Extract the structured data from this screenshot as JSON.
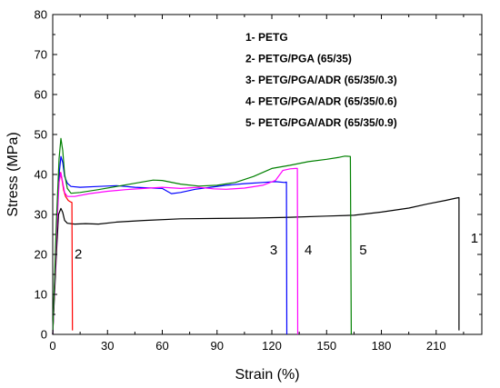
{
  "chart_data": {
    "type": "line",
    "xlabel": "Strain (%)",
    "ylabel": "Stress (MPa)",
    "xlim": [
      0,
      235
    ],
    "ylim": [
      0,
      80
    ],
    "xticks": [
      0,
      30,
      60,
      90,
      120,
      150,
      180,
      210
    ],
    "yticks": [
      0,
      10,
      20,
      30,
      40,
      50,
      60,
      70,
      80
    ],
    "grid": false,
    "legend_position": "top-right",
    "legend": [
      "1- PETG",
      "2- PETG/PGA (65/35)",
      "3- PETG/PGA/ADR  (65/35/0.3)",
      "4- PETG/PGA/ADR  (65/35/0.6)",
      "5- PETG/PGA/ADR  (65/35/0.9)"
    ],
    "series": [
      {
        "curve_label": "1",
        "color": "#000000",
        "points": [
          [
            0,
            0
          ],
          [
            2,
            20
          ],
          [
            3.2,
            30
          ],
          [
            4.5,
            31.5
          ],
          [
            5.5,
            30.5
          ],
          [
            6.5,
            28.5
          ],
          [
            8,
            27.8
          ],
          [
            12,
            27.6
          ],
          [
            18,
            27.7
          ],
          [
            25,
            27.6
          ],
          [
            35,
            28.1
          ],
          [
            50,
            28.5
          ],
          [
            70,
            28.9
          ],
          [
            90,
            29.0
          ],
          [
            110,
            29.1
          ],
          [
            130,
            29.3
          ],
          [
            150,
            29.6
          ],
          [
            165,
            29.8
          ],
          [
            180,
            30.6
          ],
          [
            195,
            31.6
          ],
          [
            205,
            32.6
          ],
          [
            215,
            33.5
          ],
          [
            221,
            34.1
          ],
          [
            222.5,
            34.2
          ],
          [
            222.5,
            1
          ]
        ]
      },
      {
        "curve_label": "2",
        "color": "#ff0000",
        "points": [
          [
            0,
            0
          ],
          [
            2,
            24
          ],
          [
            3.2,
            38
          ],
          [
            4,
            40.5
          ],
          [
            5,
            39
          ],
          [
            6,
            36
          ],
          [
            7,
            34.5
          ],
          [
            8.5,
            33.5
          ],
          [
            9.5,
            33.2
          ],
          [
            10.5,
            33
          ],
          [
            10.8,
            1
          ]
        ]
      },
      {
        "curve_label": "3",
        "color": "#0000ff",
        "points": [
          [
            0,
            0
          ],
          [
            2,
            25
          ],
          [
            3.5,
            40
          ],
          [
            4.5,
            44.5
          ],
          [
            5.5,
            43
          ],
          [
            6.5,
            39.5
          ],
          [
            8,
            37.8
          ],
          [
            10,
            37
          ],
          [
            15,
            36.8
          ],
          [
            25,
            37
          ],
          [
            35,
            37.2
          ],
          [
            45,
            36.8
          ],
          [
            55,
            36.6
          ],
          [
            60,
            36.5
          ],
          [
            65,
            35.2
          ],
          [
            70,
            35.5
          ],
          [
            78,
            36.3
          ],
          [
            85,
            36.7
          ],
          [
            95,
            37.3
          ],
          [
            105,
            37.7
          ],
          [
            115,
            38
          ],
          [
            122,
            38.2
          ],
          [
            127,
            38
          ],
          [
            128,
            38.1
          ],
          [
            128.2,
            0
          ]
        ]
      },
      {
        "curve_label": "4",
        "color": "#ff00ff",
        "points": [
          [
            0,
            0
          ],
          [
            2,
            24
          ],
          [
            3.5,
            38
          ],
          [
            4.5,
            40.5
          ],
          [
            5.5,
            38
          ],
          [
            6.5,
            35.5
          ],
          [
            8,
            34.5
          ],
          [
            12,
            34.5
          ],
          [
            20,
            35.2
          ],
          [
            30,
            35.8
          ],
          [
            40,
            36.2
          ],
          [
            50,
            36.5
          ],
          [
            60,
            36.8
          ],
          [
            70,
            36.5
          ],
          [
            80,
            36.8
          ],
          [
            88,
            36.4
          ],
          [
            95,
            36.3
          ],
          [
            105,
            36.6
          ],
          [
            115,
            37.3
          ],
          [
            122,
            38.5
          ],
          [
            126,
            41
          ],
          [
            130,
            41.4
          ],
          [
            133,
            41.5
          ],
          [
            134,
            41.5
          ],
          [
            134.2,
            0
          ]
        ]
      },
      {
        "curve_label": "5",
        "color": "#008000",
        "points": [
          [
            0,
            0
          ],
          [
            2,
            28
          ],
          [
            3.5,
            44
          ],
          [
            4.5,
            49
          ],
          [
            5.5,
            46
          ],
          [
            6.5,
            40
          ],
          [
            8,
            36.5
          ],
          [
            10,
            35.3
          ],
          [
            15,
            35.5
          ],
          [
            25,
            36.2
          ],
          [
            35,
            37
          ],
          [
            45,
            37.8
          ],
          [
            55,
            38.6
          ],
          [
            60,
            38.5
          ],
          [
            70,
            37.6
          ],
          [
            80,
            37.1
          ],
          [
            90,
            37.3
          ],
          [
            100,
            38
          ],
          [
            110,
            39.5
          ],
          [
            120,
            41.5
          ],
          [
            130,
            42.3
          ],
          [
            140,
            43.2
          ],
          [
            150,
            43.8
          ],
          [
            157,
            44.3
          ],
          [
            160,
            44.6
          ],
          [
            163,
            44.5
          ],
          [
            163.5,
            0
          ]
        ]
      }
    ]
  }
}
